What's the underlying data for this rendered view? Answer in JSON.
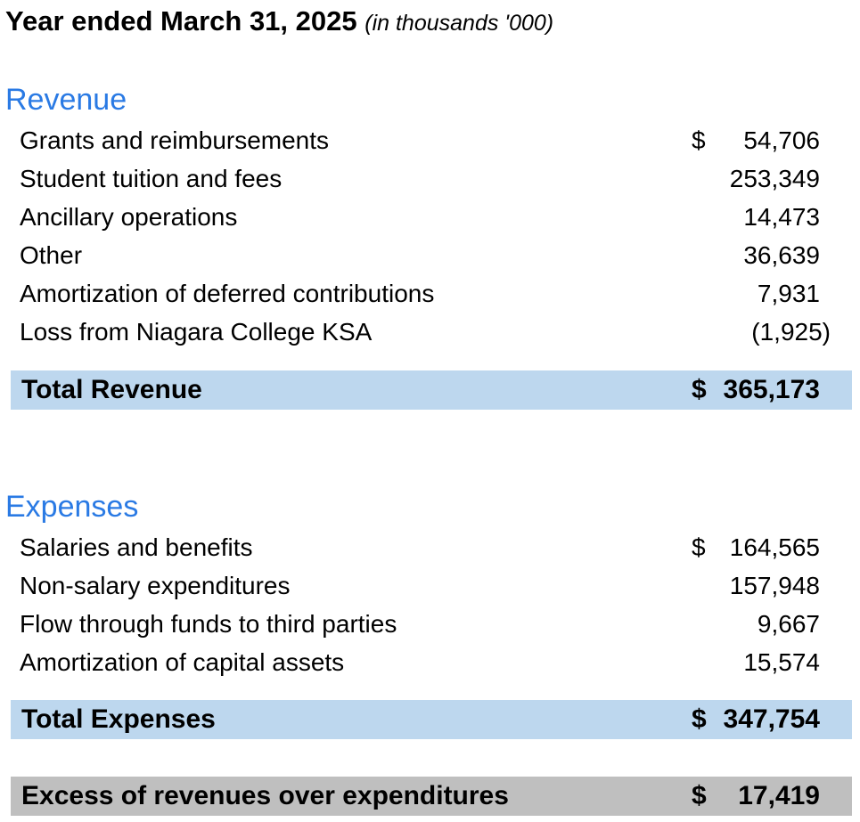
{
  "header": {
    "title": "Year ended March 31, 2025",
    "subtitle": "(in thousands '000)"
  },
  "revenue": {
    "heading": "Revenue",
    "items": [
      {
        "label": "Grants and reimbursements",
        "currency": "$",
        "amount": "54,706"
      },
      {
        "label": "Student tuition and fees",
        "currency": "",
        "amount": "253,349"
      },
      {
        "label": "Ancillary operations",
        "currency": "",
        "amount": "14,473"
      },
      {
        "label": "Other",
        "currency": "",
        "amount": "36,639"
      },
      {
        "label": "Amortization of deferred contributions",
        "currency": "",
        "amount": "7,931"
      },
      {
        "label": "Loss from Niagara College KSA",
        "currency": "",
        "amount": "(1,925)"
      }
    ],
    "total": {
      "label": "Total Revenue",
      "currency": "$",
      "amount": "365,173"
    }
  },
  "expenses": {
    "heading": "Expenses",
    "items": [
      {
        "label": "Salaries and benefits",
        "currency": "$",
        "amount": "164,565"
      },
      {
        "label": "Non-salary expenditures",
        "currency": "",
        "amount": "157,948"
      },
      {
        "label": "Flow through funds to third parties",
        "currency": "",
        "amount": "9,667"
      },
      {
        "label": "Amortization of capital assets",
        "currency": "",
        "amount": "15,574"
      }
    ],
    "total": {
      "label": "Total Expenses",
      "currency": "$",
      "amount": "347,754"
    }
  },
  "summary": {
    "label": "Excess of revenues over expenditures",
    "currency": "$",
    "amount": "17,419"
  },
  "colors": {
    "heading_blue": "#2a7ae4",
    "total_bar_blue": "#bdd7ee",
    "summary_bar_grey": "#bfbfbf"
  }
}
